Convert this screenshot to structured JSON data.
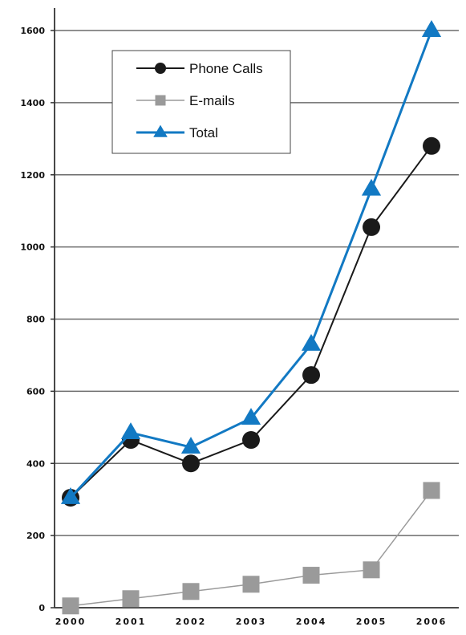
{
  "chart_data": {
    "type": "line",
    "x": [
      "2000",
      "2001",
      "2002",
      "2003",
      "2004",
      "2005",
      "2006"
    ],
    "series": [
      {
        "name": "Phone Calls",
        "values": [
          305,
          465,
          400,
          465,
          645,
          1055,
          1280
        ],
        "color": "#1a1a1a",
        "marker": "circle"
      },
      {
        "name": "E-mails",
        "values": [
          5,
          25,
          45,
          65,
          90,
          105,
          325
        ],
        "color": "#9a9a9a",
        "marker": "square"
      },
      {
        "name": "Total",
        "values": [
          305,
          485,
          445,
          525,
          730,
          1160,
          1600
        ],
        "color": "#1279c3",
        "marker": "triangle"
      }
    ],
    "yticks": [
      0,
      200,
      400,
      600,
      800,
      1000,
      1200,
      1400,
      1600
    ],
    "ylim": [
      0,
      1600
    ],
    "grid": true,
    "legend_position": "top-left",
    "title": "",
    "xlabel": "",
    "ylabel": ""
  }
}
